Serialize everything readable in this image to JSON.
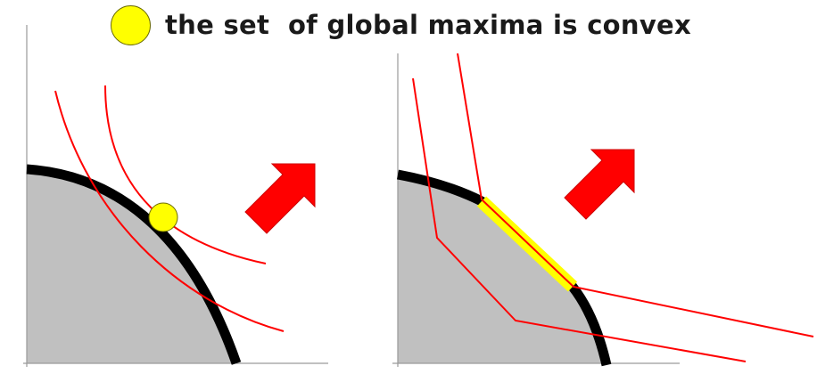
{
  "legend": {
    "text": "the set  of global maxima is convex"
  },
  "colors": {
    "feasible_region": "#c0c0c0",
    "boundary": "#000000",
    "level_curves": "#ff0000",
    "optimum_marker": "#ffff00",
    "arrow": "#ff0000",
    "axes": "#9a9a9a"
  },
  "panels": [
    {
      "name": "left",
      "feasible_region": "shaded region under a smooth concave boundary",
      "level_curves": "two smooth red curves",
      "optimum": "single yellow point tangent to boundary",
      "arrow": "red arrow pointing up-right"
    },
    {
      "name": "right",
      "feasible_region": "shaded region with a flat boundary segment",
      "level_curves": "two piecewise-linear red curves",
      "optimum": "yellow line segment along boundary",
      "arrow": "red arrow pointing up-right"
    }
  ]
}
